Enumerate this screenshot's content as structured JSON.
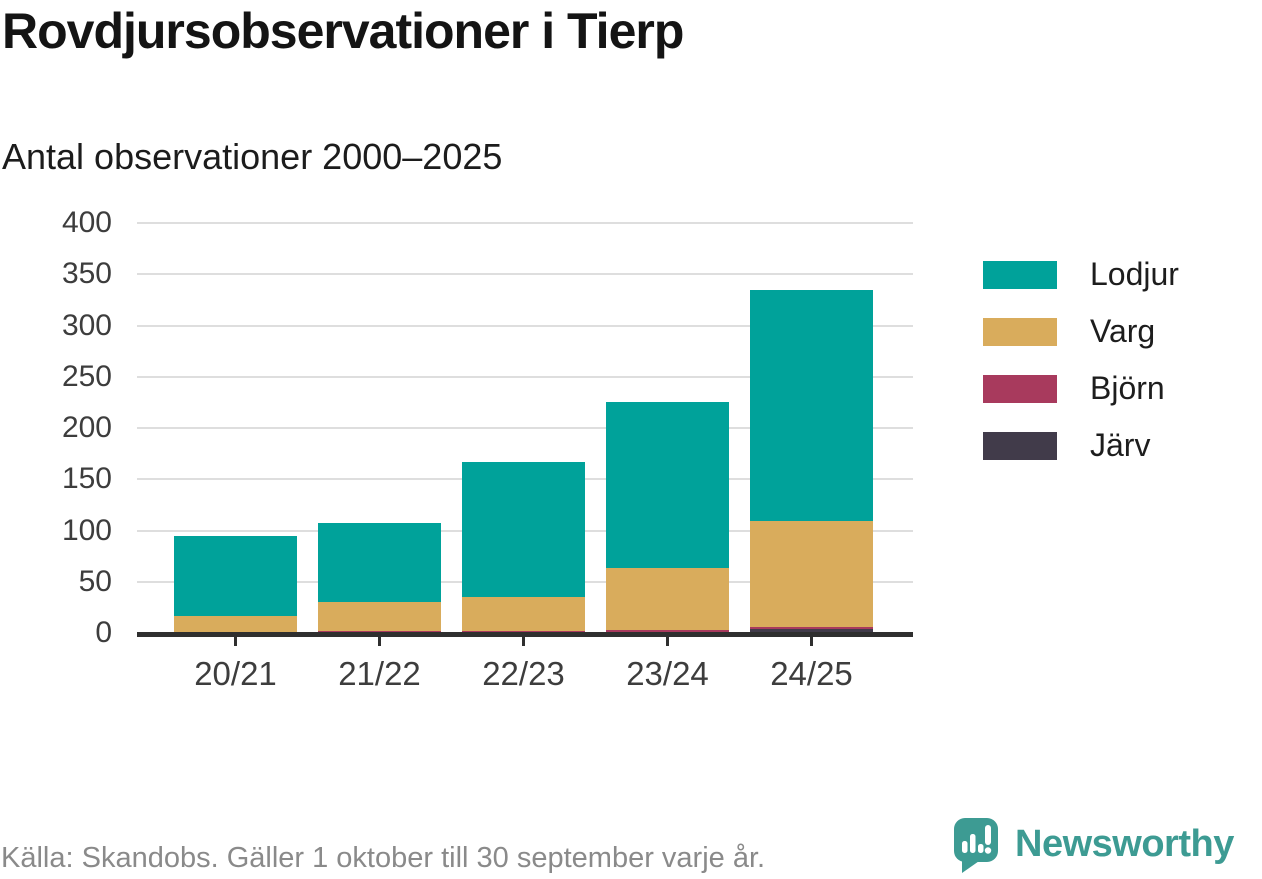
{
  "title": "Rovdjursobservationer i Tierp",
  "subtitle": "Antal observationer 2000–2025",
  "footer": {
    "source": "Källa: Skandobs. Gäller 1 oktober till 30 september varje år.",
    "brand": "Newsworthy"
  },
  "colors": {
    "lodjur": "#00a29a",
    "varg": "#d9ac5c",
    "bjorn": "#a83a5d",
    "jarv": "#413b4a",
    "axis": "#2f2f2f",
    "grid": "#dedede",
    "brand_teal": "#3d9b93"
  },
  "chart_data": {
    "type": "bar",
    "stacked": true,
    "title": "Rovdjursobservationer i Tierp",
    "subtitle": "Antal observationer 2000–2025",
    "categories": [
      "20/21",
      "21/22",
      "22/23",
      "23/24",
      "24/25"
    ],
    "series": [
      {
        "name": "Lodjur",
        "color": "#00a29a",
        "values": [
          78,
          77,
          132,
          162,
          226
        ]
      },
      {
        "name": "Varg",
        "color": "#d9ac5c",
        "values": [
          17,
          28,
          33,
          60,
          103
        ]
      },
      {
        "name": "Björn",
        "color": "#a83a5d",
        "values": [
          0,
          2,
          2,
          2,
          2
        ]
      },
      {
        "name": "Järv",
        "color": "#413b4a",
        "values": [
          0,
          0,
          0,
          1,
          4
        ]
      }
    ],
    "totals": [
      95,
      107,
      167,
      225,
      335
    ],
    "xlabel": "",
    "ylabel": "",
    "ylim": [
      0,
      400
    ],
    "yticks": [
      0,
      50,
      100,
      150,
      200,
      250,
      300,
      350,
      400
    ],
    "grid": "horizontal",
    "legend_position": "right"
  }
}
